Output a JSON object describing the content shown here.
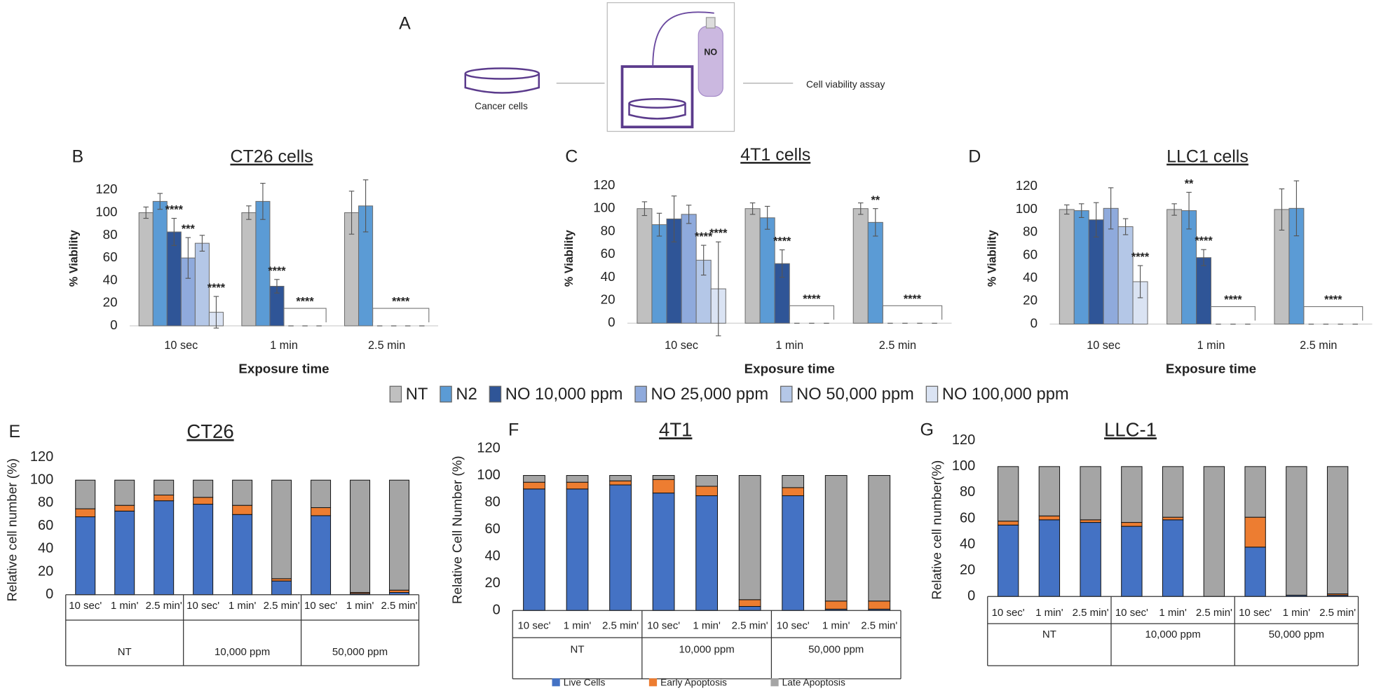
{
  "diagram": {
    "panel": "A",
    "dish_label": "Cancer cells",
    "gas_label": "NO",
    "assay_label": "Cell viability assay"
  },
  "chart_data": [
    {
      "type": "bar",
      "panel": "B",
      "title": "CT26 cells",
      "x_label": "Exposure time",
      "y_label": "% Viability",
      "categories": [
        "10 sec",
        "1 min",
        "2.5 min"
      ],
      "ylim": [
        0,
        120
      ],
      "yticks": [
        0,
        20,
        40,
        60,
        80,
        100,
        120
      ],
      "grid": false,
      "legend": "bottom",
      "series": [
        {
          "name": "NT",
          "color": "#c0c0c0",
          "values": [
            100,
            100,
            100
          ],
          "errors": [
            5,
            6,
            19
          ]
        },
        {
          "name": "N2",
          "color": "#5b9bd5",
          "values": [
            110,
            110,
            106
          ],
          "errors": [
            7,
            16,
            23
          ]
        },
        {
          "name": "NO 10,000 ppm",
          "color": "#2f5597",
          "values": [
            83,
            35,
            0
          ],
          "errors": [
            12,
            6,
            0
          ]
        },
        {
          "name": "NO 25,000 ppm",
          "color": "#8faadc",
          "values": [
            60,
            0,
            0
          ],
          "errors": [
            18,
            0,
            0
          ]
        },
        {
          "name": "NO 50,000 ppm",
          "color": "#b4c7e7",
          "values": [
            73,
            0,
            0
          ],
          "errors": [
            7,
            0,
            0
          ]
        },
        {
          "name": "NO 100,000 ppm",
          "color": "#dae3f3",
          "values": [
            12,
            0,
            0
          ],
          "errors": [
            14,
            0,
            0
          ]
        }
      ],
      "annotations": [
        {
          "text": "****",
          "category": "10 sec",
          "series": "NO 10,000 ppm"
        },
        {
          "text": "***",
          "category": "10 sec",
          "series": "NO 25,000 ppm"
        },
        {
          "text": "****",
          "category": "10 sec",
          "series": "NO 100,000 ppm"
        },
        {
          "text": "****",
          "category": "1 min",
          "series": "NO 10,000 ppm"
        },
        {
          "text": "****",
          "category": "1 min",
          "series": "NO 25,000 ppm"
        },
        {
          "text": "****",
          "category": "2.5 min",
          "series": "NO 10,000 ppm"
        }
      ]
    },
    {
      "type": "bar",
      "panel": "C",
      "title": "4T1 cells",
      "x_label": "Exposure time",
      "y_label": "% Viability",
      "categories": [
        "10 sec",
        "1 min",
        "2.5 min"
      ],
      "ylim": [
        0,
        120
      ],
      "yticks": [
        0,
        20,
        40,
        60,
        80,
        100,
        120
      ],
      "grid": false,
      "series": [
        {
          "name": "NT",
          "color": "#c0c0c0",
          "values": [
            100,
            100,
            100
          ],
          "errors": [
            6,
            5,
            5
          ]
        },
        {
          "name": "N2",
          "color": "#5b9bd5",
          "values": [
            86,
            92,
            88
          ],
          "errors": [
            10,
            10,
            12
          ]
        },
        {
          "name": "NO 10,000 ppm",
          "color": "#2f5597",
          "values": [
            91,
            52,
            0
          ],
          "errors": [
            20,
            12,
            0
          ]
        },
        {
          "name": "NO 25,000 ppm",
          "color": "#8faadc",
          "values": [
            95,
            0,
            0
          ],
          "errors": [
            8,
            0,
            0
          ]
        },
        {
          "name": "NO 50,000 ppm",
          "color": "#b4c7e7",
          "values": [
            55,
            0,
            0
          ],
          "errors": [
            13,
            0,
            0
          ]
        },
        {
          "name": "NO 100,000 ppm",
          "color": "#dae3f3",
          "values": [
            30,
            0,
            0
          ],
          "errors": [
            41,
            0,
            0
          ]
        }
      ],
      "annotations": [
        {
          "text": "****",
          "category": "10 sec",
          "series": "NO 50,000 ppm"
        },
        {
          "text": "****",
          "category": "10 sec",
          "series": "NO 100,000 ppm"
        },
        {
          "text": "****",
          "category": "1 min",
          "series": "NO 10,000 ppm"
        },
        {
          "text": "****",
          "category": "1 min",
          "series": "NO 25,000 ppm"
        },
        {
          "text": "**",
          "category": "2.5 min",
          "series": "N2"
        },
        {
          "text": "****",
          "category": "2.5 min",
          "series": "NO 10,000 ppm"
        }
      ]
    },
    {
      "type": "bar",
      "panel": "D",
      "title": "LLC1 cells",
      "x_label": "Exposure time",
      "y_label": "% Viability",
      "categories": [
        "10 sec",
        "1 min",
        "2.5 min"
      ],
      "ylim": [
        0,
        120
      ],
      "yticks": [
        0,
        20,
        40,
        60,
        80,
        100,
        120
      ],
      "grid": false,
      "series": [
        {
          "name": "NT",
          "color": "#c0c0c0",
          "values": [
            100,
            100,
            100
          ],
          "errors": [
            4,
            5,
            18
          ]
        },
        {
          "name": "N2",
          "color": "#5b9bd5",
          "values": [
            99,
            99,
            101
          ],
          "errors": [
            6,
            16,
            24
          ]
        },
        {
          "name": "NO 10,000 ppm",
          "color": "#2f5597",
          "values": [
            91,
            58,
            0
          ],
          "errors": [
            15,
            7,
            0
          ]
        },
        {
          "name": "NO 25,000 ppm",
          "color": "#8faadc",
          "values": [
            101,
            0,
            0
          ],
          "errors": [
            18,
            0,
            0
          ]
        },
        {
          "name": "NO 50,000 ppm",
          "color": "#b4c7e7",
          "values": [
            85,
            0,
            0
          ],
          "errors": [
            7,
            0,
            0
          ]
        },
        {
          "name": "NO 100,000 ppm",
          "color": "#dae3f3",
          "values": [
            37,
            0,
            0
          ],
          "errors": [
            14,
            0,
            0
          ]
        }
      ],
      "annotations": [
        {
          "text": "****",
          "category": "10 sec",
          "series": "NO 100,000 ppm"
        },
        {
          "text": "**",
          "category": "1 min",
          "series": "N2"
        },
        {
          "text": "****",
          "category": "1 min",
          "series": "NO 10,000 ppm"
        },
        {
          "text": "****",
          "category": "1 min",
          "series": "NO 25,000 ppm"
        },
        {
          "text": "****",
          "category": "2.5 min",
          "series": "NO 10,000 ppm"
        }
      ]
    },
    {
      "type": "stacked_bar",
      "panel": "E",
      "title": "CT26",
      "y_label": "Relative cell number (%)",
      "categories": [
        "10 sec'",
        "1 min'",
        "2.5 min'",
        "10 sec'",
        "1 min'",
        "2.5 min'",
        "10 sec'",
        "1 min'",
        "2.5 min'"
      ],
      "groups": [
        "NT",
        "10,000 ppm",
        "50,000 ppm"
      ],
      "ylim": [
        0,
        120
      ],
      "yticks": [
        0,
        20,
        40,
        60,
        80,
        100,
        120
      ],
      "series": [
        {
          "name": "Live Cells",
          "color": "#4472c4",
          "values": [
            68,
            73,
            82,
            79,
            70,
            12,
            69,
            1,
            2
          ]
        },
        {
          "name": "Early Apoptosis",
          "color": "#ed7d31",
          "values": [
            7,
            5,
            5,
            6,
            8,
            2,
            7,
            1,
            2
          ]
        },
        {
          "name": "Late Apoptosis",
          "color": "#a5a5a5",
          "values": [
            25,
            22,
            13,
            15,
            22,
            86,
            24,
            98,
            96
          ]
        }
      ]
    },
    {
      "type": "stacked_bar",
      "panel": "F",
      "title": "4T1",
      "y_label": "Relative Cell Number (%)",
      "legend": "bottom",
      "categories": [
        "10 sec'",
        "1 min'",
        "2.5 min'",
        "10 sec'",
        "1 min'",
        "2.5 min'",
        "10 sec'",
        "1 min'",
        "2.5 min'"
      ],
      "groups": [
        "NT",
        "10,000 ppm",
        "50,000 ppm"
      ],
      "ylim": [
        0,
        120
      ],
      "yticks": [
        0,
        20,
        40,
        60,
        80,
        100,
        120
      ],
      "series": [
        {
          "name": "Live Cells",
          "color": "#4472c4",
          "values": [
            90,
            90,
            93,
            87,
            85,
            3,
            85,
            1,
            1
          ]
        },
        {
          "name": "Early Apoptosis",
          "color": "#ed7d31",
          "values": [
            5,
            5,
            3,
            10,
            7,
            5,
            6,
            6,
            6
          ]
        },
        {
          "name": "Late Apoptosis",
          "color": "#a5a5a5",
          "values": [
            5,
            5,
            4,
            3,
            8,
            92,
            9,
            93,
            93
          ]
        }
      ]
    },
    {
      "type": "stacked_bar",
      "panel": "G",
      "title": "LLC-1",
      "y_label": "Relative cell number(%)",
      "categories": [
        "10 sec'",
        "1 min'",
        "2.5 min'",
        "10 sec'",
        "1 min'",
        "2.5 min'",
        "10 sec'",
        "1 min'",
        "2.5 min'"
      ],
      "groups": [
        "NT",
        "10,000 ppm",
        "50,000 ppm"
      ],
      "ylim": [
        0,
        120
      ],
      "yticks": [
        0,
        20,
        40,
        60,
        80,
        100,
        120
      ],
      "series": [
        {
          "name": "Live Cells",
          "color": "#4472c4",
          "values": [
            55,
            59,
            57,
            54,
            59,
            0,
            38,
            1,
            1
          ]
        },
        {
          "name": "Early Apoptosis",
          "color": "#ed7d31",
          "values": [
            3,
            3,
            2,
            3,
            2,
            0,
            23,
            0,
            1
          ]
        },
        {
          "name": "Late Apoptosis",
          "color": "#a5a5a5",
          "values": [
            42,
            38,
            41,
            43,
            39,
            100,
            39,
            99,
            98
          ]
        }
      ]
    }
  ]
}
